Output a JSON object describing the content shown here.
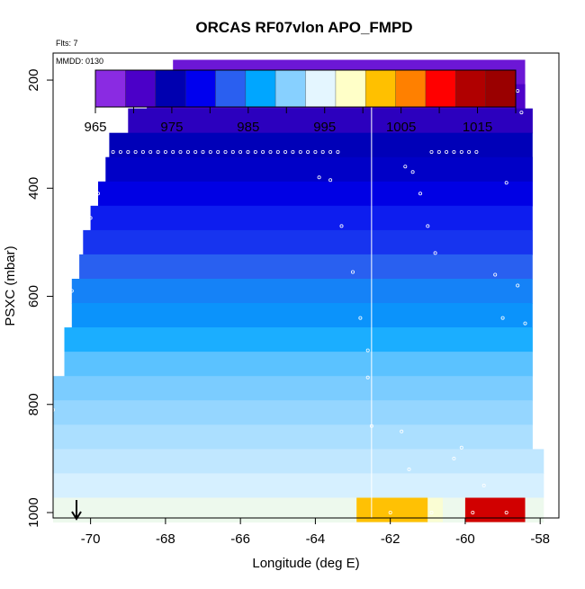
{
  "chart_data": {
    "type": "heatmap",
    "title": "ORCAS RF07vlon APO_FMPD",
    "annotations": [
      "Flts: 7",
      "MMDD: 0130"
    ],
    "xlabel": "Longitude (deg E)",
    "ylabel": "PSXC (mbar)",
    "xlim": [
      -71,
      -57.5
    ],
    "ylim": [
      1010,
      150
    ],
    "x_ticks": [
      -70,
      -68,
      -66,
      -64,
      -62,
      -60,
      -58
    ],
    "y_ticks": [
      200,
      400,
      600,
      800,
      1000
    ],
    "reference_line_x": -62.5,
    "colorbar": {
      "ticks": [
        965,
        975,
        985,
        995,
        1005,
        1015
      ],
      "range": [
        965,
        1020
      ],
      "colors": [
        "#8a2be2",
        "#4b00c8",
        "#0000b0",
        "#0000ee",
        "#2a5ff0",
        "#00a6ff",
        "#87d0ff",
        "#e4f6ff",
        "#ffffc8",
        "#ffc000",
        "#ff8000",
        "#ff0000",
        "#b00000",
        "#9a0000"
      ]
    },
    "bands": [
      {
        "p": 185,
        "xmin": -67.8,
        "xmax": -58.4,
        "value": 967
      },
      {
        "p": 230,
        "xmin": -68.5,
        "xmax": -58.4,
        "value": 969
      },
      {
        "p": 275,
        "xmin": -69.0,
        "xmax": -58.2,
        "value": 971
      },
      {
        "p": 320,
        "xmin": -69.5,
        "xmax": -58.2,
        "value": 974
      },
      {
        "p": 365,
        "xmin": -69.6,
        "xmax": -58.2,
        "value": 975
      },
      {
        "p": 410,
        "xmin": -69.8,
        "xmax": -58.2,
        "value": 977
      },
      {
        "p": 455,
        "xmin": -70.0,
        "xmax": -58.2,
        "value": 979
      },
      {
        "p": 500,
        "xmin": -70.2,
        "xmax": -58.2,
        "value": 980
      },
      {
        "p": 545,
        "xmin": -70.3,
        "xmax": -58.2,
        "value": 982
      },
      {
        "p": 590,
        "xmin": -70.5,
        "xmax": -58.2,
        "value": 984
      },
      {
        "p": 635,
        "xmin": -70.5,
        "xmax": -58.2,
        "value": 985
      },
      {
        "p": 680,
        "xmin": -70.7,
        "xmax": -58.2,
        "value": 987
      },
      {
        "p": 725,
        "xmin": -70.7,
        "xmax": -58.2,
        "value": 989
      },
      {
        "p": 770,
        "xmin": -71.0,
        "xmax": -58.2,
        "value": 990
      },
      {
        "p": 815,
        "xmin": -71.0,
        "xmax": -58.2,
        "value": 991
      },
      {
        "p": 860,
        "xmin": -71.0,
        "xmax": -58.2,
        "value": 992
      },
      {
        "p": 905,
        "xmin": -71.0,
        "xmax": -57.9,
        "value": 993
      },
      {
        "p": 950,
        "xmin": -71.0,
        "xmax": -57.9,
        "value": 994
      },
      {
        "p": 995,
        "xmin": -71.0,
        "xmax": -57.9,
        "value": 996
      }
    ],
    "surface_segments": [
      {
        "xmin": -62.9,
        "xmax": -61.0,
        "value": 1003
      },
      {
        "xmin": -61.0,
        "xmax": -60.6,
        "value": 998
      },
      {
        "xmin": -60.0,
        "xmax": -58.4,
        "value": 1014
      }
    ]
  }
}
